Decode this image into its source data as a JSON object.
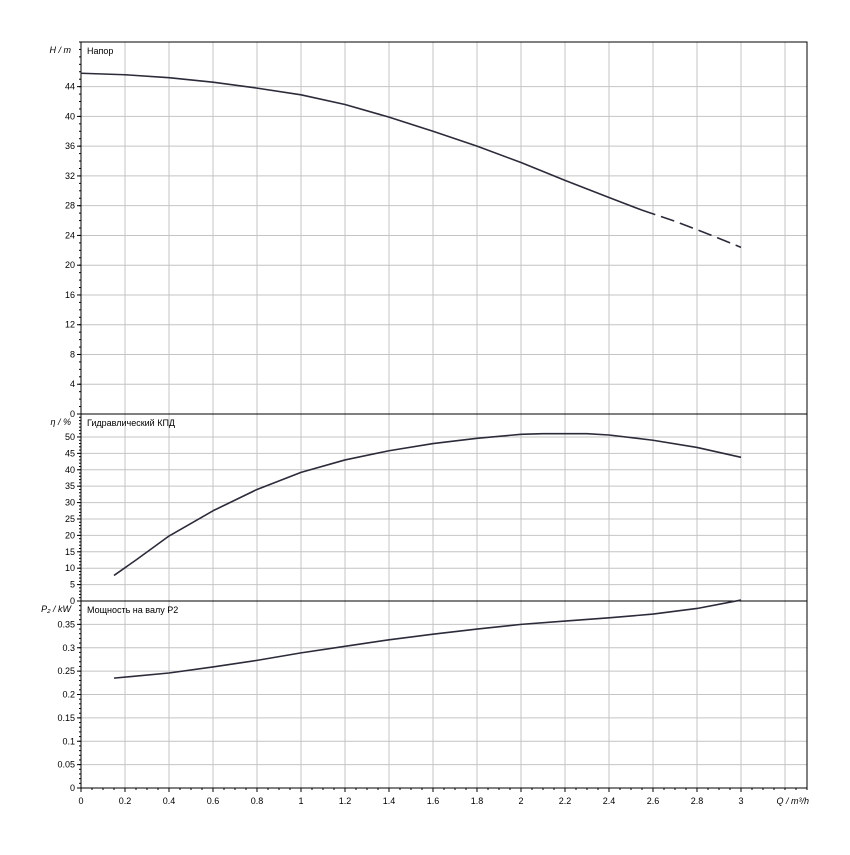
{
  "chart_data": [
    {
      "type": "line",
      "panel": "head",
      "title": "Напор",
      "ylabel": "H / m",
      "ylim": [
        0,
        50
      ],
      "yticks": [
        0,
        4,
        8,
        12,
        16,
        20,
        24,
        28,
        32,
        36,
        40,
        44
      ],
      "xlim": [
        0,
        3.3
      ],
      "grid": true,
      "series": [
        {
          "line_style": "solid",
          "x": [
            0,
            0.2,
            0.4,
            0.6,
            0.8,
            1.0,
            1.2,
            1.4,
            1.6,
            1.8,
            2.0,
            2.2,
            2.4,
            2.55
          ],
          "y": [
            45.8,
            45.6,
            45.2,
            44.6,
            43.8,
            42.9,
            41.6,
            39.9,
            38.0,
            36.0,
            33.8,
            31.4,
            29.1,
            27.4
          ]
        },
        {
          "line_style": "dashed",
          "x": [
            2.55,
            2.7,
            2.85,
            3.0
          ],
          "y": [
            27.4,
            25.9,
            24.2,
            22.4
          ]
        }
      ]
    },
    {
      "type": "line",
      "panel": "efficiency",
      "title": "Гидравлический КПД",
      "ylabel": "η / %",
      "ylim": [
        0,
        57
      ],
      "yticks": [
        0,
        5,
        10,
        15,
        20,
        25,
        30,
        35,
        40,
        45,
        50
      ],
      "xlim": [
        0,
        3.3
      ],
      "grid": true,
      "series": [
        {
          "line_style": "solid",
          "x": [
            0.15,
            0.25,
            0.4,
            0.6,
            0.8,
            1.0,
            1.2,
            1.4,
            1.6,
            1.8,
            2.0,
            2.1,
            2.2,
            2.3,
            2.4,
            2.6,
            2.8,
            3.0
          ],
          "y": [
            7.8,
            12.5,
            19.8,
            27.5,
            34.0,
            39.2,
            43.0,
            45.8,
            48.0,
            49.6,
            50.8,
            51.0,
            51.0,
            51.0,
            50.6,
            49.0,
            46.8,
            43.8
          ]
        }
      ]
    },
    {
      "type": "line",
      "panel": "power",
      "title": "Мощность на валу P2",
      "ylabel": "P₂ / kW",
      "ylim": [
        0,
        0.4
      ],
      "yticks": [
        0,
        0.05,
        0.1,
        0.15,
        0.2,
        0.25,
        0.3,
        0.35
      ],
      "ytick_labels": [
        "0",
        "0.05",
        "0.1",
        "0.15",
        "0.2",
        "0.25",
        "0.3",
        "0.35"
      ],
      "xlim": [
        0,
        3.3
      ],
      "xticks": [
        0,
        0.2,
        0.4,
        0.6,
        0.8,
        1,
        1.2,
        1.4,
        1.6,
        1.8,
        2,
        2.2,
        2.4,
        2.6,
        2.8,
        3
      ],
      "xtick_labels": [
        "0",
        "0.2",
        "0.4",
        "0.6",
        "0.8",
        "1",
        "1.2",
        "1.4",
        "1.6",
        "1.8",
        "2",
        "2.2",
        "2.4",
        "2.6",
        "2.8",
        "3"
      ],
      "xlabel": "Q / m³/h",
      "grid": true,
      "series": [
        {
          "line_style": "solid",
          "x": [
            0.15,
            0.4,
            0.6,
            0.8,
            1.0,
            1.2,
            1.4,
            1.6,
            1.8,
            2.0,
            2.2,
            2.4,
            2.6,
            2.8,
            3.0
          ],
          "y": [
            0.235,
            0.246,
            0.259,
            0.273,
            0.289,
            0.303,
            0.317,
            0.329,
            0.34,
            0.35,
            0.357,
            0.364,
            0.372,
            0.384,
            0.402
          ]
        }
      ]
    }
  ]
}
